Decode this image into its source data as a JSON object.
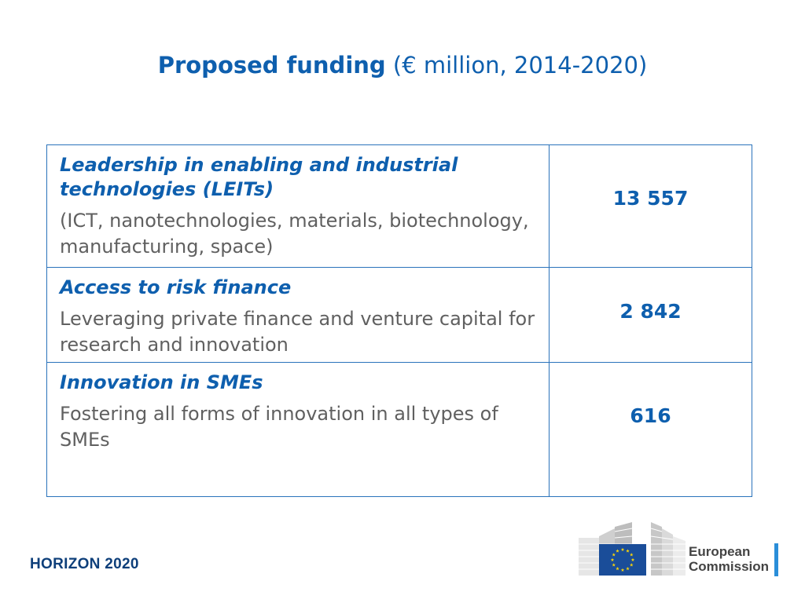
{
  "title": {
    "bold": "Proposed funding",
    "rest": "(€ million, 2014-2020)"
  },
  "table": {
    "rows": [
      {
        "heading": "Leadership in enabling and industrial technologies (LEITs)",
        "description": "(ICT, nanotechnologies, materials, biotechnology, manufacturing, space)",
        "amount": "13 557"
      },
      {
        "heading": "Access to risk finance",
        "description": "Leveraging private finance and venture capital for research and innovation",
        "amount": "2 842"
      },
      {
        "heading": "Innovation in SMEs",
        "description": "Fostering all forms of innovation in all types of SMEs",
        "amount": "616"
      }
    ]
  },
  "footer": {
    "program": "HORIZON 2020",
    "logo_line1": "European",
    "logo_line2": "Commission"
  },
  "colors": {
    "accent": "#0e5fae",
    "border": "#2a73bb",
    "body_text": "#606060",
    "eu_flag": "#1a4d99",
    "eu_stars": "#f5d20c"
  }
}
